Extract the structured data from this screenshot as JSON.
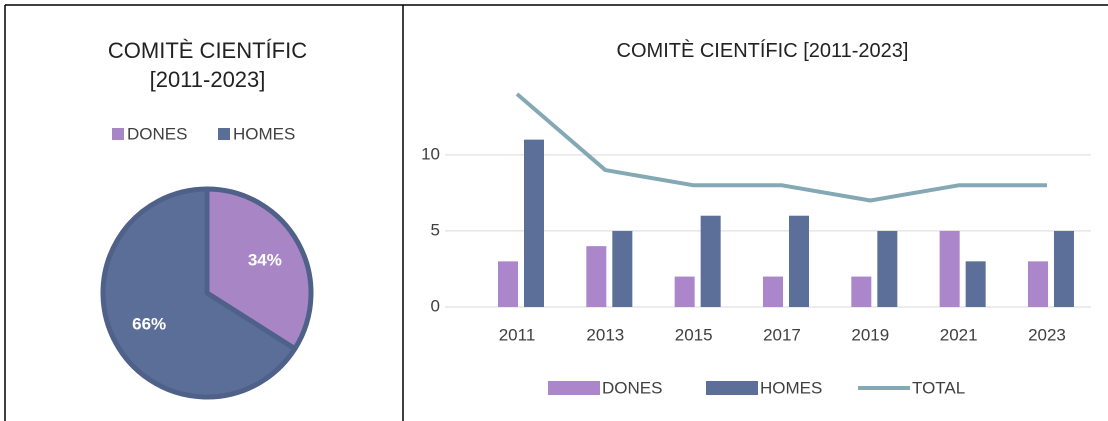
{
  "chart_data": [
    {
      "type": "pie",
      "title": "COMITÈ CIENTÍFIC [2011-2023]",
      "categories": [
        "DONES",
        "HOMES"
      ],
      "values": [
        34,
        66
      ],
      "value_labels": [
        "34%",
        "66%"
      ],
      "colors": [
        "#a886c6",
        "#5b6e98"
      ]
    },
    {
      "type": "bar",
      "title": "COMITÈ CIENTÍFIC [2011-2023]",
      "categories": [
        "2011",
        "2013",
        "2015",
        "2017",
        "2019",
        "2021",
        "2023"
      ],
      "series": [
        {
          "name": "DONES",
          "color": "#ab86ca",
          "values": [
            3,
            4,
            2,
            2,
            2,
            5,
            3
          ]
        },
        {
          "name": "HOMES",
          "color": "#5b6f98",
          "values": [
            11,
            5,
            6,
            6,
            5,
            3,
            5
          ]
        },
        {
          "name": "TOTAL",
          "type": "line",
          "color": "#84a9b4",
          "values": [
            14,
            9,
            8,
            8,
            7,
            8,
            8
          ]
        }
      ],
      "ylim": [
        0,
        14
      ],
      "yticks": [
        0,
        5,
        10
      ],
      "grid": true,
      "legend": "bottom"
    }
  ]
}
